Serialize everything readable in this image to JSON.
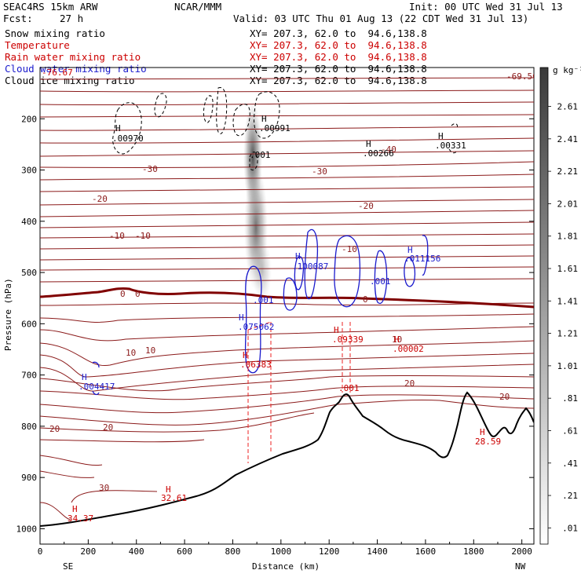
{
  "header": {
    "model": "SEAC4RS 15km ARW",
    "org": "NCAR/MMM",
    "init": "Init: 00 UTC Wed 31 Jul 13",
    "fcst_label": "Fcst:",
    "fcst_value": "27 h",
    "valid": "Valid: 03 UTC Thu 01 Aug 13 (22 CDT Wed 31 Jul 13)",
    "fields": [
      {
        "name": "Snow mixing ratio",
        "color": "#000000",
        "xy": "XY= 207.3, 62.0 to  94.6,138.8"
      },
      {
        "name": "Temperature",
        "color": "#cc0000",
        "xy": "XY= 207.3, 62.0 to  94.6,138.8"
      },
      {
        "name": "Rain water mixing ratio",
        "color": "#cc0000",
        "xy": "XY= 207.3, 62.0 to  94.6,138.8"
      },
      {
        "name": "Cloud water mixing ratio",
        "color": "#1a1acc",
        "xy": "XY= 207.3, 62.0 to  94.6,138.8"
      },
      {
        "name": "Cloud ice mixing ratio",
        "color": "#000000",
        "xy": "XY= 207.3, 62.0 to  94.6,138.8"
      }
    ]
  },
  "chart_data": {
    "type": "contour cross-section",
    "title": "",
    "xlabel": "Distance (km)",
    "ylabel": "Pressure (hPa)",
    "xlim": [
      0,
      2050
    ],
    "ylim": [
      100,
      1030
    ],
    "x_ticks": [
      0,
      200,
      400,
      600,
      800,
      1000,
      1200,
      1400,
      1600,
      1800,
      2000
    ],
    "y_ticks": [
      200,
      300,
      400,
      500,
      600,
      700,
      800,
      900,
      1000
    ],
    "x_end_labels": {
      "left": "SE",
      "right": "NW"
    },
    "colorbar": {
      "unit": "g kg⁻¹",
      "ticks": [
        ".01",
        ".21",
        ".41",
        ".61",
        ".81",
        "1.01",
        "1.21",
        "1.41",
        "1.61",
        "1.81",
        "2.01",
        "2.21",
        "2.41",
        "2.61"
      ]
    },
    "isotherms": [
      {
        "label": "-69.56",
        "p": 110
      },
      {
        "label": "-40",
        "p": 250
      },
      {
        "label": "-30",
        "p": 300
      },
      {
        "label": "-20",
        "p": 350
      },
      {
        "label": "-10",
        "p": 430
      },
      {
        "label": "0",
        "p": 565
      },
      {
        "label": "10",
        "p": 675
      },
      {
        "label": "20",
        "p": 812
      },
      {
        "label": "30",
        "p": 955
      }
    ],
    "labels": {
      "temp_max_left": {
        "text": "34.37",
        "color": "#cc0000"
      },
      "temp_max_mid": {
        "text": "32.61",
        "color": "#cc0000"
      },
      "temp_max_right": {
        "text": "28.59",
        "color": "#cc0000"
      },
      "temp_top_left": {
        "text": "-76.67",
        "color": "#cc0000"
      },
      "snow_max_1": {
        "text": ".00970",
        "color": "#000000"
      },
      "snow_max_2": {
        "text": ".00991",
        "color": "#000000"
      },
      "snow_max_3": {
        "text": ".00266",
        "color": "#000000"
      },
      "snow_max_4": {
        "text": ".00331",
        "color": "#000000"
      },
      "snow_contour": {
        "text": ".001",
        "color": "#000000"
      },
      "cloud_max_1": {
        "text": ".004417",
        "color": "#1a1acc"
      },
      "cloud_max_2": {
        "text": ".075062",
        "color": "#1a1acc"
      },
      "cloud_max_3": {
        "text": ".100087",
        "color": "#1a1acc"
      },
      "cloud_max_4": {
        "text": ".011156",
        "color": "#1a1acc"
      },
      "cloud_contour_1": {
        "text": ".001",
        "color": "#1a1acc"
      },
      "cloud_contour_2": {
        "text": ".001",
        "color": "#1a1acc"
      },
      "rain_max_1": {
        "text": ".06383",
        "color": "#cc0000"
      },
      "rain_max_2": {
        "text": ".09339",
        "color": "#cc0000"
      },
      "rain_max_3": {
        "text": ".00002",
        "color": "#cc0000"
      },
      "rain_contour": {
        "text": ".001",
        "color": "#cc0000"
      }
    },
    "colors": {
      "isotherm": "#8b1a1a",
      "freezing": "#800000",
      "cloud_water": "#1a1acc",
      "rain": "#ee2222",
      "terrain": "#000000",
      "snow": "#000000"
    }
  }
}
